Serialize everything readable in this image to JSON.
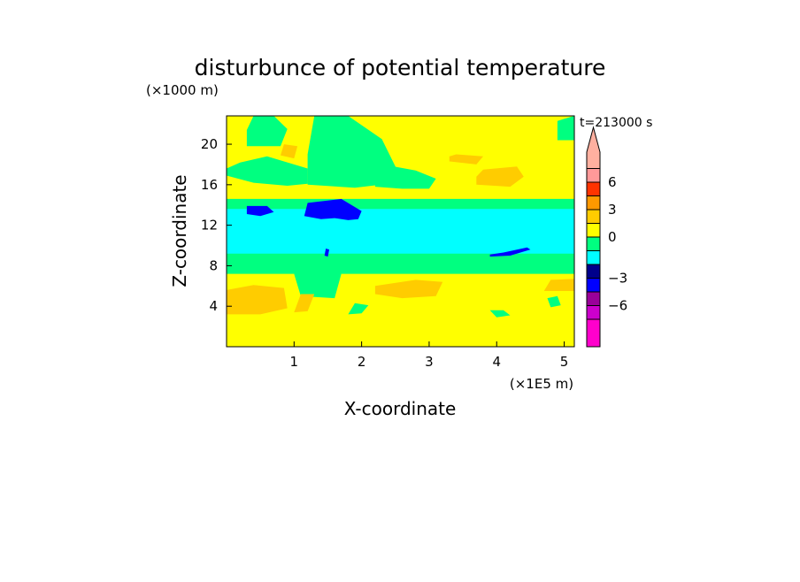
{
  "chart_data": {
    "type": "heatmap",
    "title": "disturbunce of potential temperature",
    "time_label": "t=213000 s",
    "xlabel": "X-coordinate",
    "ylabel": "Z-coordinate",
    "x_unit": "(×1E5 m)",
    "y_unit": "(×1000 m)",
    "xlim": [
      0,
      5.15
    ],
    "ylim": [
      0,
      22.8
    ],
    "x_ticks": [
      1,
      2,
      3,
      4,
      5
    ],
    "y_ticks": [
      4,
      8,
      12,
      16,
      20
    ],
    "background_level": "0",
    "levels": [
      {
        "label": "",
        "color": "#ff00cc"
      },
      {
        "label": "-6",
        "color": "#cc00cc"
      },
      {
        "label": "",
        "color": "#990099"
      },
      {
        "label": "-3",
        "color": "#0000ff"
      },
      {
        "label": "",
        "color": "#00008b"
      },
      {
        "label": "",
        "color": "#00ffff"
      },
      {
        "label": "0",
        "color": "#00ff80"
      },
      {
        "label": "",
        "color": "#ffff00"
      },
      {
        "label": "3",
        "color": "#ffcc00"
      },
      {
        "label": "",
        "color": "#ff9900"
      },
      {
        "label": "6",
        "color": "#ff3300"
      },
      {
        "label": "",
        "color": "#ff9999"
      },
      {
        "label": "",
        "color": "#ffb0a0"
      }
    ],
    "regions": [
      {
        "value": 0.5,
        "x": [
          0,
          0.4,
          0.9,
          1.2,
          1.2,
          0.6,
          0.2,
          0
        ],
        "y": [
          16.9,
          16.2,
          15.9,
          16.1,
          17.6,
          18.8,
          18.2,
          17.6
        ]
      },
      {
        "value": 0.5,
        "x": [
          0.3,
          0.8,
          0.9,
          0.7,
          0.4,
          0.3
        ],
        "y": [
          19.8,
          19.8,
          21.5,
          22.8,
          22.8,
          21.4
        ]
      },
      {
        "value": 0.5,
        "x": [
          1.2,
          1.9,
          2.4,
          2.5,
          2.3,
          1.8,
          1.3,
          1.2
        ],
        "y": [
          16.0,
          15.7,
          16.1,
          17.8,
          20.5,
          22.8,
          22.8,
          19.0
        ]
      },
      {
        "value": 0.5,
        "x": [
          2.2,
          2.6,
          3.0,
          3.1,
          2.8,
          2.4,
          2.2
        ],
        "y": [
          15.8,
          15.6,
          15.6,
          16.6,
          17.4,
          17.9,
          16.9
        ]
      },
      {
        "value": 0.5,
        "x": [
          4.9,
          5.15,
          5.15,
          4.9
        ],
        "y": [
          20.4,
          20.4,
          22.8,
          22.3
        ]
      },
      {
        "value": 0.5,
        "x": [
          0,
          5.15,
          5.15,
          0
        ],
        "y": [
          13.0,
          13.0,
          14.6,
          14.6
        ]
      },
      {
        "value": 0.5,
        "x": [
          0,
          5.15,
          5.15,
          0
        ],
        "y": [
          7.2,
          7.2,
          9.5,
          9.5
        ]
      },
      {
        "value": 0.5,
        "x": [
          1.1,
          1.6,
          1.7,
          1.4,
          1.0
        ],
        "y": [
          5.0,
          4.8,
          7.2,
          7.4,
          7.2
        ]
      },
      {
        "value": 0.5,
        "x": [
          1.8,
          2.0,
          2.1,
          1.9
        ],
        "y": [
          3.2,
          3.3,
          4.1,
          4.3
        ]
      },
      {
        "value": 0.5,
        "x": [
          4.0,
          4.2,
          4.1,
          3.9
        ],
        "y": [
          2.9,
          3.1,
          3.6,
          3.6
        ]
      },
      {
        "value": 0.5,
        "x": [
          4.8,
          4.95,
          4.9,
          4.75
        ],
        "y": [
          3.9,
          4.1,
          5.0,
          4.8
        ]
      },
      {
        "value": -1.5,
        "x": [
          0,
          5.15,
          5.15,
          0
        ],
        "y": [
          9.2,
          9.2,
          13.6,
          13.6
        ]
      },
      {
        "value": -3.5,
        "x": [
          0.3,
          0.5,
          0.7,
          0.6,
          0.3
        ],
        "y": [
          13.1,
          12.9,
          13.3,
          13.9,
          13.9
        ]
      },
      {
        "value": -3.5,
        "x": [
          1.15,
          1.4,
          1.6,
          1.8,
          1.95,
          2.0,
          1.7,
          1.2
        ],
        "y": [
          12.9,
          12.6,
          12.7,
          12.5,
          12.6,
          13.4,
          14.6,
          14.2
        ]
      },
      {
        "value": -3.5,
        "x": [
          3.9,
          4.2,
          4.5,
          4.45,
          4.1,
          3.9
        ],
        "y": [
          8.9,
          9.0,
          9.6,
          9.8,
          9.3,
          9.1
        ]
      },
      {
        "value": -1.5,
        "x": [
          2.3,
          2.6,
          2.5,
          2.3
        ],
        "y": [
          12.4,
          12.6,
          13.3,
          13.2
        ]
      },
      {
        "value": 1.5,
        "x": [
          3.3,
          3.7,
          3.8,
          3.4,
          3.3
        ],
        "y": [
          18.3,
          18.0,
          18.8,
          19.0,
          18.8
        ]
      },
      {
        "value": 1.5,
        "x": [
          3.7,
          4.2,
          4.4,
          4.3,
          3.8,
          3.7
        ],
        "y": [
          16.0,
          15.8,
          16.8,
          17.8,
          17.5,
          16.8
        ]
      },
      {
        "value": 1.5,
        "x": [
          0,
          0.5,
          0.9,
          0.85,
          0.4,
          0
        ],
        "y": [
          3.2,
          3.2,
          3.8,
          5.8,
          6.1,
          5.6
        ]
      },
      {
        "value": 1.5,
        "x": [
          1.0,
          1.2,
          1.3,
          1.1
        ],
        "y": [
          3.4,
          3.5,
          5.2,
          5.2
        ]
      },
      {
        "value": 1.5,
        "x": [
          2.2,
          2.6,
          3.1,
          3.2,
          2.8,
          2.2
        ],
        "y": [
          5.2,
          4.8,
          5.0,
          6.4,
          6.6,
          6.0
        ]
      },
      {
        "value": 1.5,
        "x": [
          4.7,
          5.15,
          5.15,
          4.8
        ],
        "y": [
          5.5,
          5.5,
          6.7,
          6.6
        ]
      },
      {
        "value": 1.5,
        "x": [
          0.8,
          1.0,
          1.05,
          0.85
        ],
        "y": [
          18.9,
          18.6,
          19.8,
          20.0
        ]
      },
      {
        "value": -3.5,
        "x": [
          1.45,
          1.5,
          1.52,
          1.47
        ],
        "y": [
          9.0,
          8.9,
          9.6,
          9.7
        ]
      }
    ]
  }
}
